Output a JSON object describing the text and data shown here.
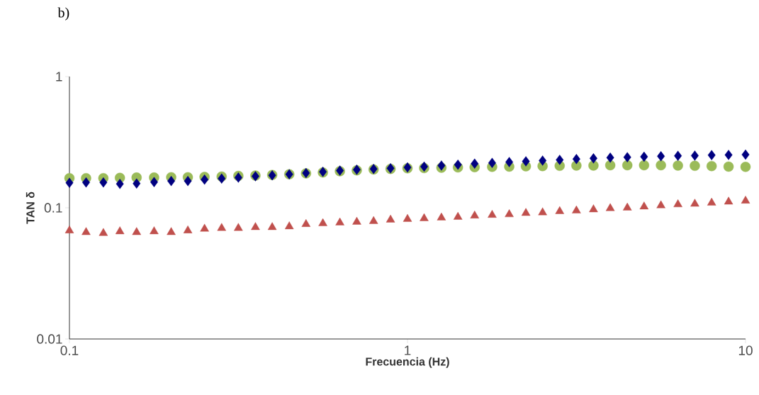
{
  "chart_data": {
    "type": "scatter",
    "title": "b)",
    "xlabel": "Frecuencia (Hz)",
    "ylabel": "TAN δ",
    "log": "xy",
    "xlim": [
      0.1,
      10
    ],
    "ylim": [
      0.01,
      1
    ],
    "xticks": [
      0.1,
      1,
      10
    ],
    "yticks": [
      0.01,
      0.1,
      1
    ],
    "grid": false,
    "x": [
      0.1,
      0.112,
      0.126,
      0.141,
      0.158,
      0.178,
      0.2,
      0.224,
      0.251,
      0.282,
      0.316,
      0.355,
      0.398,
      0.447,
      0.501,
      0.562,
      0.631,
      0.708,
      0.794,
      0.891,
      1,
      1.12,
      1.26,
      1.41,
      1.58,
      1.78,
      2,
      2.24,
      2.51,
      2.82,
      3.16,
      3.55,
      3.98,
      4.47,
      5.01,
      5.62,
      6.31,
      7.08,
      7.94,
      8.91,
      10
    ],
    "series": [
      {
        "color": "#9bbb59",
        "marker": "circle",
        "values": [
          0.168,
          0.168,
          0.168,
          0.169,
          0.17,
          0.17,
          0.171,
          0.171,
          0.172,
          0.173,
          0.175,
          0.176,
          0.178,
          0.18,
          0.183,
          0.186,
          0.19,
          0.193,
          0.196,
          0.198,
          0.2,
          0.201,
          0.202,
          0.203,
          0.204,
          0.205,
          0.206,
          0.207,
          0.208,
          0.209,
          0.21,
          0.21,
          0.211,
          0.211,
          0.211,
          0.211,
          0.21,
          0.209,
          0.208,
          0.206,
          0.205
        ]
      },
      {
        "color": "#000080",
        "marker": "diamond",
        "values": [
          0.155,
          0.156,
          0.156,
          0.152,
          0.153,
          0.157,
          0.16,
          0.16,
          0.164,
          0.167,
          0.17,
          0.174,
          0.177,
          0.18,
          0.184,
          0.188,
          0.192,
          0.195,
          0.198,
          0.2,
          0.203,
          0.206,
          0.21,
          0.213,
          0.217,
          0.22,
          0.223,
          0.226,
          0.229,
          0.232,
          0.235,
          0.238,
          0.241,
          0.243,
          0.245,
          0.247,
          0.249,
          0.25,
          0.252,
          0.253,
          0.254
        ]
      },
      {
        "color": "#c0504d",
        "marker": "triangle",
        "values": [
          0.067,
          0.065,
          0.064,
          0.066,
          0.065,
          0.066,
          0.065,
          0.067,
          0.069,
          0.07,
          0.07,
          0.071,
          0.071,
          0.072,
          0.075,
          0.076,
          0.077,
          0.078,
          0.079,
          0.081,
          0.082,
          0.083,
          0.084,
          0.085,
          0.087,
          0.088,
          0.089,
          0.091,
          0.092,
          0.094,
          0.095,
          0.097,
          0.099,
          0.1,
          0.102,
          0.104,
          0.106,
          0.107,
          0.109,
          0.111,
          0.113
        ]
      }
    ]
  }
}
